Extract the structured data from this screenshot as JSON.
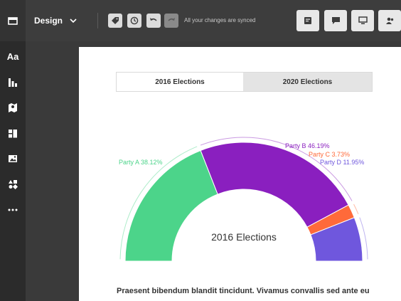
{
  "topbar": {
    "mode_label": "Design",
    "sync_status": "All your changes are synced"
  },
  "icons": {
    "home": "home-icon",
    "chevron": "chevron-down-icon",
    "tag": "tag-icon",
    "history": "history-icon",
    "undo": "undo-icon",
    "redo": "redo-icon",
    "notes": "notes-icon",
    "comment": "comment-icon",
    "preview": "monitor-icon",
    "share": "people-icon"
  },
  "sidebar": {
    "items": [
      {
        "label": "Aa",
        "icon": "text-icon"
      },
      {
        "icon": "bar-chart-icon"
      },
      {
        "icon": "map-icon"
      },
      {
        "icon": "layout-icon"
      },
      {
        "icon": "image-icon"
      },
      {
        "icon": "shapes-icon"
      },
      {
        "icon": "more-icon"
      }
    ]
  },
  "tabs": [
    {
      "label": "2016 Elections",
      "active": true
    },
    {
      "label": "2020 Elections",
      "active": false
    }
  ],
  "chart_data": {
    "type": "pie",
    "variant": "semicircle-donut",
    "center_label": "2016 Elections",
    "series": [
      {
        "name": "Party A",
        "value": 38.12,
        "label": "Party A 38.12%",
        "color": "#4cd48a"
      },
      {
        "name": "Party B",
        "value": 46.19,
        "label": "Party B 46.19%",
        "color": "#8a1fbf"
      },
      {
        "name": "Party C",
        "value": 3.73,
        "label": "Party C 3.73%",
        "color": "#ff6a3a"
      },
      {
        "name": "Party D",
        "value": 11.95,
        "label": "Party D 11.95%",
        "color": "#6f57dd"
      }
    ]
  },
  "body_text": "Praesent bibendum blandit tincidunt. Vivamus convallis sed ante eu"
}
